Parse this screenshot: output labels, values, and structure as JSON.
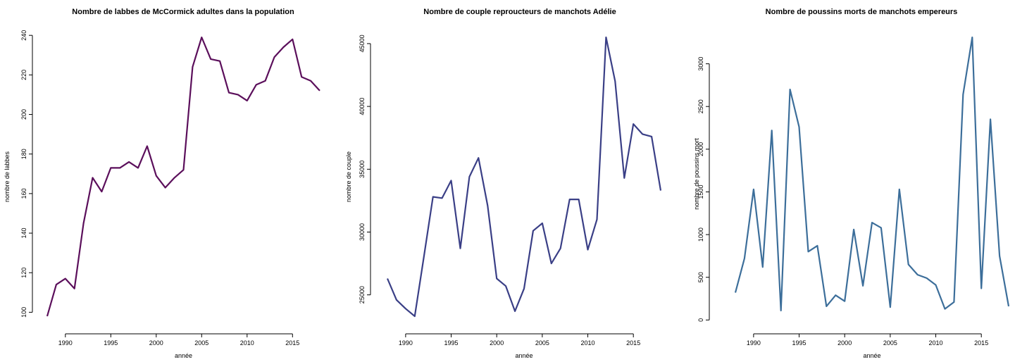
{
  "chart_data": [
    {
      "type": "line",
      "title": "Nombre de labbes de McCormick adultes dans la population",
      "xlabel": "année",
      "ylabel": "nombre de labbes",
      "color": "#5b0f5b",
      "xlim": [
        1988,
        2018
      ],
      "ylim": [
        98,
        239
      ],
      "xticks": [
        1990,
        1995,
        2000,
        2005,
        2010,
        2015
      ],
      "yticks": [
        100,
        120,
        140,
        160,
        180,
        200,
        220,
        240
      ],
      "series": [
        {
          "x": [
            1988,
            1989,
            1990,
            1991,
            1992,
            1993,
            1994,
            1995,
            1996,
            1997,
            1998,
            1999,
            2000,
            2001,
            2002,
            2003,
            2004,
            2005,
            2006,
            2007,
            2008,
            2009,
            2010,
            2011,
            2012,
            2013,
            2014,
            2015,
            2016,
            2017,
            2018
          ],
          "values": [
            98,
            114,
            117,
            112,
            145,
            168,
            161,
            173,
            173,
            176,
            173,
            184,
            169,
            163,
            168,
            172,
            224,
            239,
            228,
            227,
            211,
            210,
            207,
            215,
            217,
            229,
            234,
            238,
            219,
            217,
            212
          ]
        }
      ]
    },
    {
      "type": "line",
      "title": "Nombre de couple reproucteurs de manchots Adélie",
      "xlabel": "année",
      "ylabel": "nombre de couple",
      "color": "#3a3f86",
      "xlim": [
        1988,
        2018
      ],
      "ylim": [
        23300,
        45500
      ],
      "xticks": [
        1990,
        1995,
        2000,
        2005,
        2010,
        2015
      ],
      "yticks": [
        25000,
        30000,
        35000,
        40000,
        45000
      ],
      "series": [
        {
          "x": [
            1988,
            1989,
            1990,
            1991,
            1992,
            1993,
            1994,
            1995,
            1996,
            1997,
            1998,
            1999,
            2000,
            2001,
            2002,
            2003,
            2004,
            2005,
            2006,
            2007,
            2008,
            2009,
            2010,
            2011,
            2012,
            2013,
            2014,
            2015,
            2016,
            2017,
            2018
          ],
          "values": [
            26300,
            24600,
            23900,
            23300,
            28000,
            32800,
            32700,
            34100,
            28700,
            34400,
            35900,
            32100,
            26300,
            25700,
            23700,
            25500,
            30100,
            30700,
            27500,
            28700,
            32600,
            32600,
            28600,
            31000,
            45500,
            42000,
            34300,
            38600,
            37800,
            37600,
            33300
          ]
        }
      ]
    },
    {
      "type": "line",
      "title": "Nombre de poussins morts de manchots empereurs",
      "xlabel": "année",
      "ylabel": "nombre de poussins mort",
      "color": "#3c6e9a",
      "xlim": [
        1988,
        2018
      ],
      "ylim": [
        110,
        3310
      ],
      "xticks": [
        1990,
        1995,
        2000,
        2005,
        2010,
        2015
      ],
      "yticks": [
        0,
        500,
        1000,
        1500,
        2000,
        2500,
        3000
      ],
      "series": [
        {
          "x": [
            1988,
            1989,
            1990,
            1991,
            1992,
            1993,
            1994,
            1995,
            1996,
            1997,
            1998,
            1999,
            2000,
            2001,
            2002,
            2003,
            2004,
            2005,
            2006,
            2007,
            2008,
            2009,
            2010,
            2011,
            2012,
            2013,
            2014,
            2015,
            2016,
            2017,
            2018
          ],
          "values": [
            320,
            720,
            1530,
            620,
            2220,
            110,
            2700,
            2260,
            800,
            870,
            160,
            290,
            220,
            1060,
            400,
            1140,
            1080,
            150,
            1530,
            650,
            530,
            490,
            410,
            130,
            210,
            2640,
            3310,
            370,
            2350,
            750,
            160
          ]
        }
      ]
    }
  ]
}
